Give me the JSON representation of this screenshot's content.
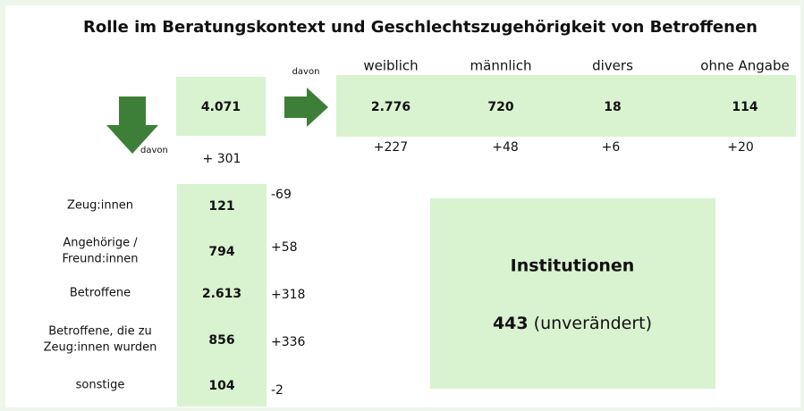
{
  "title": "Rolle im Beratungskontext und Geschlechtszugehörigkeit von Betroffenen",
  "total": {
    "value": "4.071",
    "change": "+ 301",
    "davon": "davon"
  },
  "gender": {
    "davon": "davon",
    "columns": [
      {
        "label": "weiblich",
        "value": "2.776",
        "change": "+227"
      },
      {
        "label": "männlich",
        "value": "720",
        "change": "+48"
      },
      {
        "label": "divers",
        "value": "18",
        "change": "+6"
      },
      {
        "label": "ohne Angabe",
        "value": "114",
        "change": "+20"
      }
    ]
  },
  "roles": [
    {
      "label": [
        "Zeug:innen"
      ],
      "value": "121",
      "change": "-69"
    },
    {
      "label": [
        "Angehörige /",
        "Freund:innen"
      ],
      "value": "794",
      "change": "+58"
    },
    {
      "label": [
        "Betroffene"
      ],
      "value": "2.613",
      "change": "+318"
    },
    {
      "label": [
        "Betroffene, die zu",
        "Zeug:innen wurden"
      ],
      "value": "856",
      "change": "+336"
    },
    {
      "label": [
        "sonstige"
      ],
      "value": "104",
      "change": "-2"
    }
  ],
  "institutions": {
    "label": "Institutionen",
    "value": "443",
    "note": "(unverändert)"
  }
}
